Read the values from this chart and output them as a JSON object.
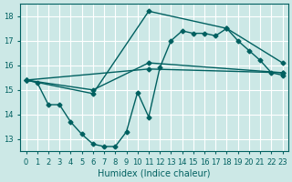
{
  "xlabel": "Humidex (Indice chaleur)",
  "bg_color": "#cce8e6",
  "grid_color": "#ffffff",
  "line_color": "#006060",
  "xlim": [
    -0.5,
    23.5
  ],
  "ylim": [
    12.5,
    18.5
  ],
  "xticks": [
    0,
    1,
    2,
    3,
    4,
    5,
    6,
    7,
    8,
    9,
    10,
    11,
    12,
    13,
    14,
    15,
    16,
    17,
    18,
    19,
    20,
    21,
    22,
    23
  ],
  "yticks": [
    13,
    14,
    15,
    16,
    17,
    18
  ],
  "series1_x": [
    0,
    1,
    2,
    3,
    4,
    5,
    6,
    7,
    8,
    9,
    10,
    11,
    12,
    13,
    14,
    15,
    16,
    17,
    18,
    19,
    20,
    21,
    22,
    23
  ],
  "series1_y": [
    15.4,
    15.3,
    14.4,
    14.4,
    13.7,
    13.2,
    12.8,
    12.7,
    12.7,
    13.3,
    14.9,
    13.9,
    15.9,
    17.0,
    17.4,
    17.3,
    17.3,
    17.2,
    17.5,
    17.0,
    16.6,
    16.2,
    15.7,
    15.6
  ],
  "series2_x": [
    0,
    6,
    11,
    23
  ],
  "series2_y": [
    15.4,
    15.0,
    16.1,
    15.7
  ],
  "series3_x": [
    0,
    6,
    11,
    18,
    23
  ],
  "series3_y": [
    15.4,
    14.85,
    18.2,
    17.5,
    16.1
  ],
  "series4_x": [
    0,
    11,
    23
  ],
  "series4_y": [
    15.4,
    15.85,
    15.7
  ]
}
